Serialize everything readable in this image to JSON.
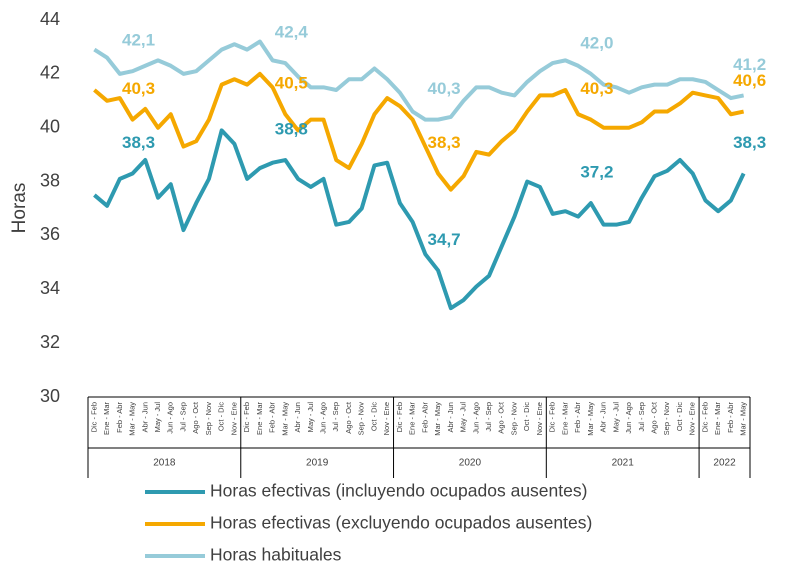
{
  "chart_data": {
    "type": "line",
    "ylabel": "Horas",
    "ylim": [
      30,
      44
    ],
    "yticks": [
      30,
      32,
      34,
      36,
      38,
      40,
      42,
      44
    ],
    "grid": false,
    "legend": "bottom",
    "categories": [
      "Dic - Feb",
      "Ene - Mar",
      "Feb - Abr",
      "Mar - May",
      "Abr - Jun",
      "May - Jul",
      "Jun - Ago",
      "Jul - Sep",
      "Ago - Oct",
      "Sep - Nov",
      "Oct - Dic",
      "Nov - Ene",
      "Dic - Feb",
      "Ene - Mar",
      "Feb - Abr",
      "Mar - May",
      "Abr - Jun",
      "May - Jul",
      "Jun - Ago",
      "Jul - Sep",
      "Ago - Oct",
      "Sep - Nov",
      "Oct - Dic",
      "Nov - Ene",
      "Dic - Feb",
      "Ene - Mar",
      "Feb - Abr",
      "Mar - May",
      "Abr - Jun",
      "May - Jul",
      "Jun - Ago",
      "Jul - Sep",
      "Ago - Oct",
      "Sep - Nov",
      "Oct - Dic",
      "Nov - Ene",
      "Dic - Feb",
      "Ene - Mar",
      "Feb - Abr",
      "Mar - May",
      "Abr - Jun",
      "May - Jul",
      "Jun - Ago",
      "Jul - Sep",
      "Ago - Oct",
      "Sep - Nov",
      "Oct - Dic",
      "Nov - Ene",
      "Dic - Feb",
      "Ene - Mar",
      "Feb - Abr",
      "Mar - May"
    ],
    "x_groups": [
      {
        "label": "2018",
        "span": 12
      },
      {
        "label": "2019",
        "span": 12
      },
      {
        "label": "2020",
        "span": 12
      },
      {
        "label": "2021",
        "span": 12
      },
      {
        "label": "2022",
        "span": 4
      }
    ],
    "series": [
      {
        "name": "Horas efectivas (incluyendo ocupados ausentes)",
        "color": "#2e9ab0",
        "values": [
          37.5,
          37.1,
          38.1,
          38.3,
          38.8,
          37.4,
          37.9,
          36.2,
          37.2,
          38.1,
          39.9,
          39.4,
          38.1,
          38.5,
          38.7,
          38.8,
          38.1,
          37.8,
          38.1,
          36.4,
          36.5,
          37.0,
          38.6,
          38.7,
          37.2,
          36.5,
          35.3,
          34.7,
          33.3,
          33.6,
          34.1,
          34.5,
          35.6,
          36.7,
          38.0,
          37.8,
          36.8,
          36.9,
          36.7,
          37.2,
          36.4,
          36.4,
          36.5,
          37.4,
          38.2,
          38.4,
          38.8,
          38.3,
          37.3,
          36.9,
          37.3,
          38.3
        ],
        "value_labels": [
          null,
          null,
          null,
          "38,3",
          null,
          null,
          null,
          null,
          null,
          null,
          null,
          null,
          null,
          null,
          null,
          "38,8",
          null,
          null,
          null,
          null,
          null,
          null,
          null,
          null,
          null,
          null,
          null,
          "34,7",
          null,
          null,
          null,
          null,
          null,
          null,
          null,
          null,
          null,
          null,
          null,
          "37,2",
          null,
          null,
          null,
          null,
          null,
          null,
          null,
          null,
          null,
          null,
          null,
          "38,3"
        ]
      },
      {
        "name": "Horas efectivas (excluyendo ocupados ausentes)",
        "color": "#f5a800",
        "values": [
          41.4,
          41.0,
          41.1,
          40.3,
          40.7,
          40.0,
          40.5,
          39.3,
          39.5,
          40.3,
          41.6,
          41.8,
          41.6,
          42.0,
          41.5,
          40.5,
          39.9,
          40.3,
          40.3,
          38.8,
          38.5,
          39.4,
          40.5,
          41.1,
          40.8,
          40.3,
          39.3,
          38.3,
          37.7,
          38.2,
          39.1,
          39.0,
          39.5,
          39.9,
          40.6,
          41.2,
          41.2,
          41.4,
          40.5,
          40.3,
          40.0,
          40.0,
          40.0,
          40.2,
          40.6,
          40.6,
          40.9,
          41.3,
          41.2,
          41.1,
          40.5,
          40.6
        ],
        "value_labels": [
          null,
          null,
          null,
          "40,3",
          null,
          null,
          null,
          null,
          null,
          null,
          null,
          null,
          null,
          null,
          null,
          "40,5",
          null,
          null,
          null,
          null,
          null,
          null,
          null,
          null,
          null,
          null,
          null,
          "38,3",
          null,
          null,
          null,
          null,
          null,
          null,
          null,
          null,
          null,
          null,
          null,
          "40,3",
          null,
          null,
          null,
          null,
          null,
          null,
          null,
          null,
          null,
          null,
          null,
          "40,6"
        ]
      },
      {
        "name": "Horas habituales",
        "color": "#96cbd9",
        "values": [
          42.9,
          42.6,
          42.0,
          42.1,
          42.3,
          42.5,
          42.3,
          42.0,
          42.1,
          42.5,
          42.9,
          43.1,
          42.9,
          43.2,
          42.5,
          42.4,
          41.9,
          41.5,
          41.5,
          41.4,
          41.8,
          41.8,
          42.2,
          41.8,
          41.3,
          40.6,
          40.3,
          40.3,
          40.4,
          41.0,
          41.5,
          41.5,
          41.3,
          41.2,
          41.7,
          42.1,
          42.4,
          42.5,
          42.3,
          42.0,
          41.6,
          41.5,
          41.3,
          41.5,
          41.6,
          41.6,
          41.8,
          41.8,
          41.7,
          41.4,
          41.1,
          41.2
        ],
        "value_labels": [
          null,
          null,
          null,
          "42,1",
          null,
          null,
          null,
          null,
          null,
          null,
          null,
          null,
          null,
          null,
          null,
          "42,4",
          null,
          null,
          null,
          null,
          null,
          null,
          null,
          null,
          null,
          null,
          null,
          "40,3",
          null,
          null,
          null,
          null,
          null,
          null,
          null,
          null,
          null,
          null,
          null,
          "42,0",
          null,
          null,
          null,
          null,
          null,
          null,
          null,
          null,
          null,
          null,
          null,
          "41,2"
        ]
      }
    ]
  }
}
